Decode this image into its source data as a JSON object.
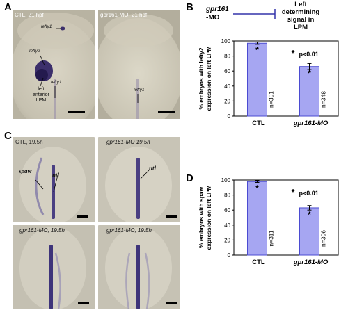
{
  "panels": {
    "A": {
      "letter": "A",
      "left_title": "CTL, 21 hpf",
      "right_title": "gpr161-MO, 21 hpf",
      "annotations": {
        "lefty1_top": "lefty1",
        "lefty2": "lefty2",
        "lefty1_mid": "lefty1",
        "lpm_line1": "left",
        "lpm_line2": "anterior",
        "lpm_line3": "LPM",
        "lefty1_right": "lefty1"
      }
    },
    "B": {
      "letter": "B",
      "schematic": {
        "gene_line1": "gpr161",
        "gene_line2": "-MO",
        "target_line1": "Left",
        "target_line2": "determining",
        "target_line3": "signal in",
        "target_line4": "LPM"
      }
    },
    "C": {
      "letter": "C",
      "titles": [
        "CTL, 19.5h",
        "gpr161-MO 19.5h",
        "gpr161-MO, 19.5h",
        "gpr161-MO, 19.5h"
      ],
      "labels": {
        "spaw": "spaw",
        "ntl_left": "ntl",
        "ntl_right": "ntl"
      }
    },
    "D": {
      "letter": "D"
    }
  },
  "chart_data": [
    {
      "type": "bar",
      "panel": "B",
      "categories": [
        "CTL",
        "gpr161-MO"
      ],
      "values": [
        97,
        66
      ],
      "errors": [
        1.5,
        4
      ],
      "n_labels": [
        "n=351",
        "n=348"
      ],
      "ylabel_line1": "% embryos with lefty2",
      "ylabel_line2": "expression on left LPM",
      "ylim": [
        0,
        100
      ],
      "yticks": [
        "0",
        "20",
        "40",
        "60",
        "80",
        "100"
      ],
      "significance": "p<0.01",
      "bar_color": "#a6a6f2",
      "bar_stroke": "#4b4bd1"
    },
    {
      "type": "bar",
      "panel": "D",
      "categories": [
        "CTL",
        "gpr161-MO"
      ],
      "values": [
        98,
        63
      ],
      "errors": [
        1.2,
        3
      ],
      "n_labels": [
        "n=311",
        "n=306"
      ],
      "ylabel_line1": "% embryos with spaw",
      "ylabel_line2": "expression on left LPM",
      "ylim": [
        0,
        100
      ],
      "yticks": [
        "0",
        "20",
        "40",
        "60",
        "80",
        "100"
      ],
      "significance": "p<0.01",
      "bar_color": "#a6a6f2",
      "bar_stroke": "#4b4bd1"
    }
  ]
}
